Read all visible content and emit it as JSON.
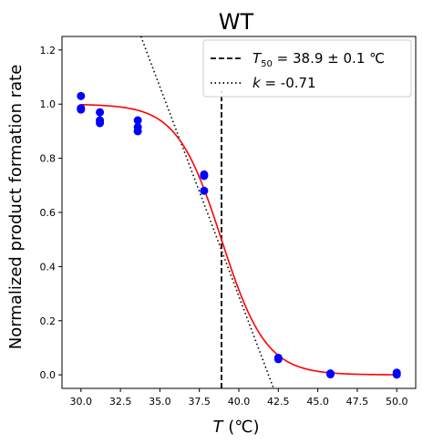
{
  "chart_data": {
    "type": "scatter",
    "title": "WT",
    "xlabel": {
      "var": "T",
      "unit": " (℃)"
    },
    "ylabel": "Normalized product formation rate",
    "xlim": [
      28.8,
      51.2
    ],
    "ylim": [
      -0.05,
      1.25
    ],
    "xticks": [
      "30.0",
      "32.5",
      "35.0",
      "37.5",
      "40.0",
      "42.5",
      "45.0",
      "47.5",
      "50.0"
    ],
    "yticks": [
      "0.0",
      "0.2",
      "0.4",
      "0.6",
      "0.8",
      "1.0",
      "1.2"
    ],
    "grid": false,
    "legend_position": "top-right",
    "colors": {
      "points": "#0000ff",
      "fit": "#ff0000",
      "lines": "#000000"
    },
    "points": [
      {
        "x": 30.0,
        "y": 1.03
      },
      {
        "x": 30.0,
        "y": 0.985
      },
      {
        "x": 30.0,
        "y": 0.98
      },
      {
        "x": 31.2,
        "y": 0.97
      },
      {
        "x": 31.2,
        "y": 0.94
      },
      {
        "x": 31.2,
        "y": 0.93
      },
      {
        "x": 33.6,
        "y": 0.94
      },
      {
        "x": 33.6,
        "y": 0.915
      },
      {
        "x": 33.6,
        "y": 0.9
      },
      {
        "x": 37.8,
        "y": 0.74
      },
      {
        "x": 37.8,
        "y": 0.735
      },
      {
        "x": 37.8,
        "y": 0.68
      },
      {
        "x": 42.5,
        "y": 0.063
      },
      {
        "x": 42.5,
        "y": 0.058
      },
      {
        "x": 45.8,
        "y": 0.005
      },
      {
        "x": 45.8,
        "y": 0.002
      },
      {
        "x": 50.0,
        "y": 0.008
      },
      {
        "x": 50.0,
        "y": 0.001
      }
    ],
    "fit": {
      "type": "sigmoid",
      "t50": 38.9,
      "k": -0.71
    },
    "t50_line": {
      "x": 38.9,
      "y_top": 1.05
    },
    "slope_line": {
      "x": [
        33.8,
        42.2
      ],
      "y": [
        1.25,
        -0.05
      ]
    },
    "legend": [
      {
        "style": "dashed",
        "var": "T",
        "sub": "50",
        "text": " = 38.9 ± 0.1 ℃"
      },
      {
        "style": "dotted",
        "var": "k",
        "sub": "",
        "text": " = -0.71"
      }
    ]
  }
}
